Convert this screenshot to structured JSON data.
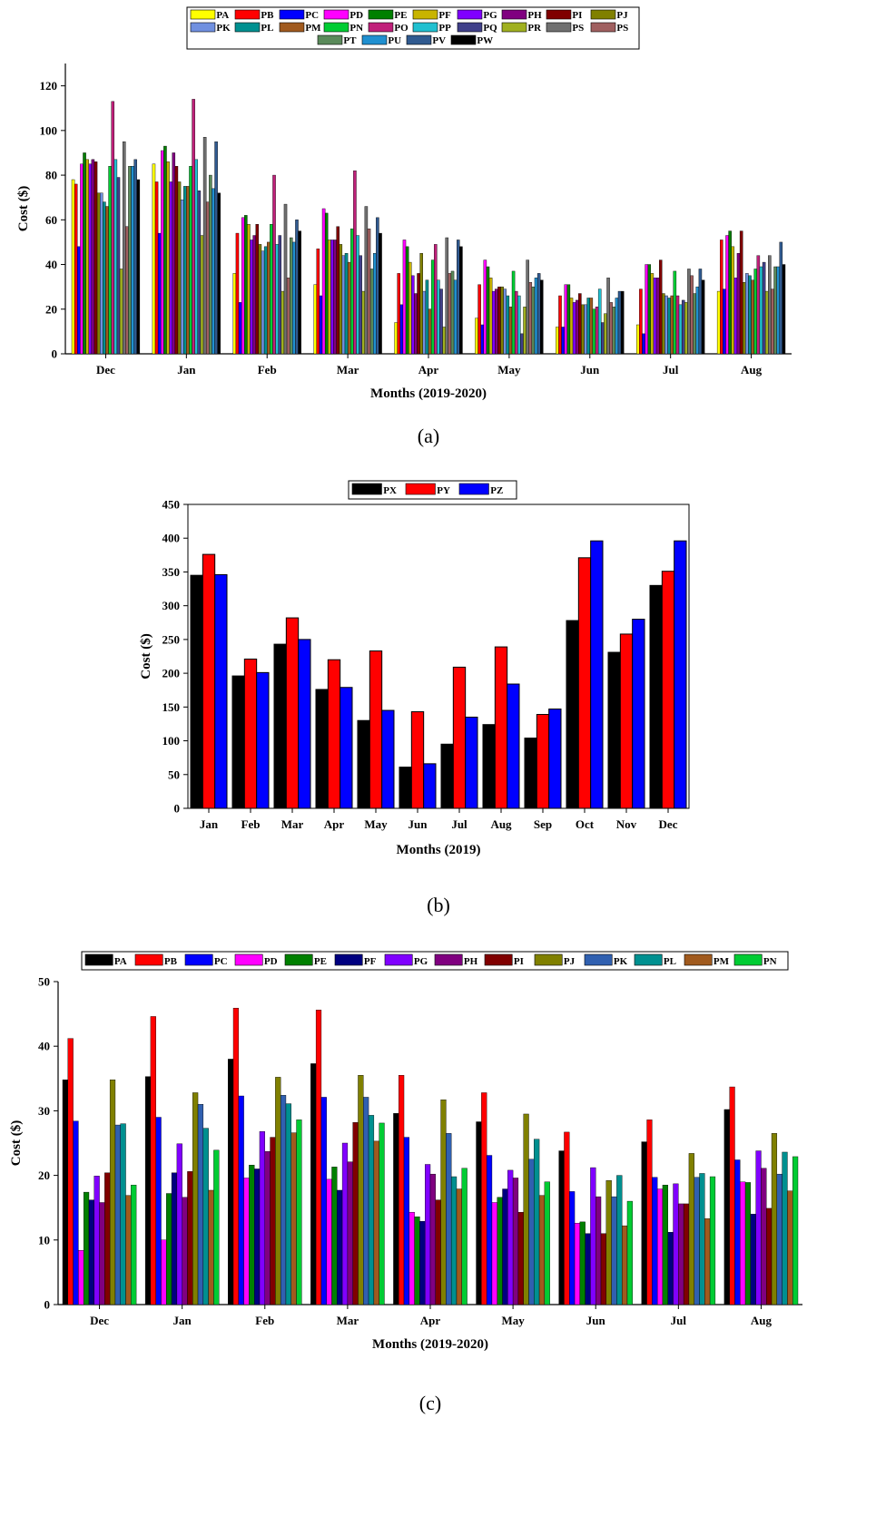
{
  "colors": {
    "PA": "#ffff00",
    "PB": "#ff0000",
    "PC": "#0000ff",
    "PD": "#ff00ff",
    "PE": "#008000",
    "PF": "#c8b400",
    "PG": "#8000ff",
    "PH": "#800080",
    "PI": "#800000",
    "PJ": "#808000",
    "PK": "#7090e0",
    "PL": "#009090",
    "PM": "#a05a1e",
    "PN": "#00cc33",
    "PO": "#c0207a",
    "PP": "#20c0d0",
    "PQ": "#40408a",
    "PR": "#a0b020",
    "PS": "#707070",
    "PS2": "#a06060",
    "PT": "#5a8a5a",
    "PU": "#2090d0",
    "PV": "#305a90",
    "PW": "#000000",
    "PX": "#000000",
    "PY": "#ff0000",
    "PZ": "#0000ff"
  },
  "chart_data": [
    {
      "id": "a",
      "type": "bar",
      "caption": "(a)",
      "xlabel": "Months (2019-2020)",
      "ylabel": "Cost ($)",
      "ylim": [
        0,
        130
      ],
      "yticks": [
        0,
        20,
        40,
        60,
        80,
        100,
        120
      ],
      "categories": [
        "Dec",
        "Jan",
        "Feb",
        "Mar",
        "Apr",
        "May",
        "Jun",
        "Jul",
        "Aug"
      ],
      "legend_rows": [
        [
          "PA",
          "PB",
          "PC",
          "PD",
          "PE",
          "PF",
          "PG",
          "PH",
          "PI",
          "PJ"
        ],
        [
          "PK",
          "PL",
          "PM",
          "PN",
          "PO",
          "PP",
          "PQ",
          "PR",
          "PS",
          "PS"
        ],
        [
          "PT",
          "PU",
          "PV",
          "PW"
        ]
      ],
      "series": [
        {
          "name": "PA",
          "color_key": "PA",
          "values": [
            78,
            85,
            36,
            31,
            14,
            16,
            12,
            13,
            28
          ]
        },
        {
          "name": "PB",
          "color_key": "PB",
          "values": [
            76,
            77,
            54,
            47,
            36,
            31,
            26,
            29,
            51
          ]
        },
        {
          "name": "PC",
          "color_key": "PC",
          "values": [
            48,
            54,
            23,
            26,
            22,
            13,
            12,
            9,
            29
          ]
        },
        {
          "name": "PD",
          "color_key": "PD",
          "values": [
            85,
            91,
            61,
            65,
            51,
            42,
            31,
            40,
            53
          ]
        },
        {
          "name": "PE",
          "color_key": "PE",
          "values": [
            90,
            93,
            62,
            63,
            48,
            39,
            31,
            40,
            55
          ]
        },
        {
          "name": "PF",
          "color_key": "PF",
          "values": [
            87,
            86,
            58,
            51,
            41,
            34,
            25,
            36,
            48
          ]
        },
        {
          "name": "PG",
          "color_key": "PG",
          "values": [
            85,
            77,
            51,
            51,
            35,
            28,
            23,
            34,
            34
          ]
        },
        {
          "name": "PH",
          "color_key": "PH",
          "values": [
            87,
            90,
            53,
            51,
            27,
            29,
            24,
            34,
            45
          ]
        },
        {
          "name": "PI",
          "color_key": "PI",
          "values": [
            86,
            84,
            58,
            57,
            36,
            30,
            27,
            42,
            55
          ]
        },
        {
          "name": "PJ",
          "color_key": "PJ",
          "values": [
            72,
            77,
            49,
            49,
            45,
            30,
            22,
            27,
            32
          ]
        },
        {
          "name": "PK",
          "color_key": "PK",
          "values": [
            72,
            69,
            46,
            44,
            28,
            29,
            22,
            26,
            36
          ]
        },
        {
          "name": "PL",
          "color_key": "PL",
          "values": [
            68,
            75,
            48,
            45,
            33,
            26,
            25,
            25,
            35
          ]
        },
        {
          "name": "PM",
          "color_key": "PM",
          "values": [
            66,
            75,
            50,
            41,
            20,
            21,
            25,
            26,
            33
          ]
        },
        {
          "name": "PN",
          "color_key": "PN",
          "values": [
            84,
            84,
            58,
            56,
            42,
            37,
            20,
            37,
            38
          ]
        },
        {
          "name": "PO",
          "color_key": "PO",
          "values": [
            113,
            114,
            80,
            82,
            49,
            28,
            21,
            26,
            44
          ]
        },
        {
          "name": "PP",
          "color_key": "PP",
          "values": [
            87,
            87,
            49,
            53,
            33,
            26,
            29,
            22,
            39
          ]
        },
        {
          "name": "PQ",
          "color_key": "PQ",
          "values": [
            79,
            73,
            53,
            44,
            29,
            9,
            14,
            24,
            41
          ]
        },
        {
          "name": "PR",
          "color_key": "PR",
          "values": [
            38,
            53,
            28,
            28,
            12,
            21,
            18,
            23,
            28
          ]
        },
        {
          "name": "PS",
          "color_key": "PS",
          "values": [
            95,
            97,
            67,
            66,
            52,
            42,
            34,
            38,
            44
          ]
        },
        {
          "name": "PS",
          "color_key": "PS2",
          "values": [
            57,
            68,
            34,
            56,
            36,
            32,
            23,
            35,
            29
          ]
        },
        {
          "name": "PT",
          "color_key": "PT",
          "values": [
            84,
            80,
            52,
            38,
            37,
            30,
            21,
            27,
            39
          ]
        },
        {
          "name": "PU",
          "color_key": "PU",
          "values": [
            84,
            74,
            50,
            45,
            33,
            34,
            25,
            30,
            39
          ]
        },
        {
          "name": "PV",
          "color_key": "PV",
          "values": [
            87,
            95,
            60,
            61,
            51,
            36,
            28,
            38,
            50
          ]
        },
        {
          "name": "PW",
          "color_key": "PW",
          "values": [
            78,
            72,
            55,
            54,
            48,
            33,
            28,
            33,
            40
          ]
        }
      ]
    },
    {
      "id": "b",
      "type": "bar",
      "caption": "(b)",
      "xlabel": "Months (2019)",
      "ylabel": "Cost ($)",
      "ylim": [
        0,
        450
      ],
      "yticks": [
        0,
        50,
        100,
        150,
        200,
        250,
        300,
        350,
        400,
        450
      ],
      "categories": [
        "Jan",
        "Feb",
        "Mar",
        "Apr",
        "May",
        "Jun",
        "Jul",
        "Aug",
        "Sep",
        "Oct",
        "Nov",
        "Dec"
      ],
      "legend_rows": [
        [
          "PX",
          "PY",
          "PZ"
        ]
      ],
      "series": [
        {
          "name": "PX",
          "color_key": "PX",
          "values": [
            345,
            196,
            243,
            176,
            130,
            61,
            95,
            124,
            104,
            278,
            231,
            330
          ]
        },
        {
          "name": "PY",
          "color_key": "PY",
          "values": [
            376,
            221,
            282,
            220,
            233,
            143,
            209,
            239,
            139,
            371,
            258,
            351
          ]
        },
        {
          "name": "PZ",
          "color_key": "PZ",
          "values": [
            346,
            201,
            250,
            179,
            145,
            66,
            135,
            184,
            147,
            396,
            280,
            396
          ]
        }
      ]
    },
    {
      "id": "c",
      "type": "bar",
      "caption": "(c)",
      "xlabel": "Months (2019-2020)",
      "ylabel": "Cost ($)",
      "ylim": [
        0,
        50
      ],
      "yticks": [
        0,
        10,
        20,
        30,
        40,
        50
      ],
      "categories": [
        "Dec",
        "Jan",
        "Feb",
        "Mar",
        "Apr",
        "May",
        "Jun",
        "Jul",
        "Aug"
      ],
      "legend_rows": [
        [
          "PA",
          "PB",
          "PC",
          "PD",
          "PE",
          "PF",
          "PG",
          "PH",
          "PI",
          "PJ",
          "PK",
          "PL",
          "PM",
          "PN"
        ]
      ],
      "series": [
        {
          "name": "PA",
          "color_key": "PX",
          "values": [
            34.8,
            35.3,
            38.0,
            37.3,
            29.6,
            28.3,
            23.8,
            25.2,
            30.2
          ]
        },
        {
          "name": "PB",
          "color_key": "PB",
          "values": [
            41.2,
            44.6,
            45.9,
            45.6,
            35.5,
            32.8,
            26.7,
            28.6,
            33.7
          ]
        },
        {
          "name": "PC",
          "color_key": "PC",
          "values": [
            28.4,
            29.0,
            32.3,
            32.1,
            25.9,
            23.1,
            17.5,
            19.7,
            22.4
          ]
        },
        {
          "name": "PD",
          "color_key": "PD",
          "values": [
            8.4,
            10.0,
            19.6,
            19.4,
            14.3,
            15.8,
            12.6,
            17.9,
            19.0
          ]
        },
        {
          "name": "PE",
          "color_key": "PE",
          "values": [
            17.4,
            17.2,
            21.6,
            21.3,
            13.6,
            16.6,
            12.8,
            18.5,
            18.9
          ]
        },
        {
          "name": "PF",
          "color_key": "PQ2",
          "values": [
            16.2,
            20.4,
            21.0,
            17.7,
            12.9,
            17.9,
            11.0,
            11.2,
            14.0
          ]
        },
        {
          "name": "PG",
          "color_key": "PG",
          "values": [
            19.9,
            24.9,
            26.8,
            25.0,
            21.7,
            20.8,
            21.2,
            18.7,
            23.8
          ]
        },
        {
          "name": "PH",
          "color_key": "PH",
          "values": [
            15.8,
            16.6,
            23.7,
            22.1,
            20.2,
            19.6,
            16.7,
            15.6,
            21.1
          ]
        },
        {
          "name": "PI",
          "color_key": "PI",
          "values": [
            20.4,
            20.6,
            25.9,
            28.2,
            16.2,
            14.3,
            11.0,
            15.6,
            14.9
          ]
        },
        {
          "name": "PJ",
          "color_key": "PJ",
          "values": [
            34.8,
            32.8,
            35.2,
            35.5,
            31.7,
            29.5,
            19.2,
            23.4,
            26.5
          ]
        },
        {
          "name": "PK",
          "color_key": "PV2",
          "values": [
            27.8,
            31.0,
            32.4,
            32.1,
            26.5,
            22.5,
            16.7,
            19.7,
            20.2
          ]
        },
        {
          "name": "PL",
          "color_key": "PL",
          "values": [
            28.0,
            27.3,
            31.1,
            29.3,
            19.8,
            25.6,
            20.0,
            20.3,
            23.6
          ]
        },
        {
          "name": "PM",
          "color_key": "PM",
          "values": [
            16.9,
            17.7,
            26.6,
            25.3,
            17.9,
            16.9,
            12.2,
            13.3,
            17.6
          ]
        },
        {
          "name": "PN",
          "color_key": "PN",
          "values": [
            18.5,
            23.9,
            28.6,
            28.1,
            21.1,
            19.0,
            16.0,
            19.8,
            22.9
          ]
        }
      ]
    }
  ]
}
